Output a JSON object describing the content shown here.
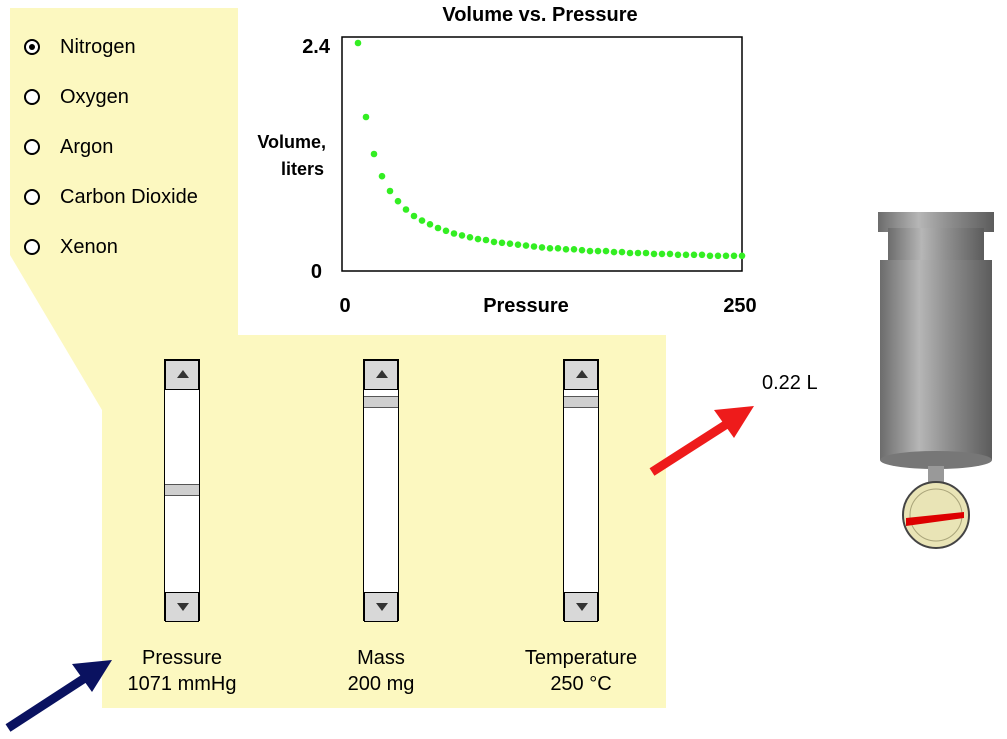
{
  "gas_options": [
    {
      "label": "Nitrogen",
      "selected": true
    },
    {
      "label": "Oxygen",
      "selected": false
    },
    {
      "label": "Argon",
      "selected": false
    },
    {
      "label": "Carbon Dioxide",
      "selected": false
    },
    {
      "label": "Xenon",
      "selected": false
    }
  ],
  "chart_data": {
    "type": "scatter",
    "title": "Volume vs. Pressure",
    "xlabel": "Pressure",
    "ylabel": [
      "Volume,",
      "liters"
    ],
    "xlim": [
      0,
      250
    ],
    "ylim": [
      0,
      2.4
    ],
    "xtick_labels": [
      "0",
      "250"
    ],
    "ytick_labels": [
      "2.4",
      "0"
    ],
    "grid": false,
    "color": "#33ee22",
    "x": [
      10,
      15,
      20,
      25,
      30,
      35,
      40,
      45,
      50,
      55,
      60,
      65,
      70,
      75,
      80,
      85,
      90,
      95,
      100,
      105,
      110,
      115,
      120,
      125,
      130,
      135,
      140,
      145,
      150,
      155,
      160,
      165,
      170,
      175,
      180,
      185,
      190,
      195,
      200,
      205,
      210,
      215,
      220,
      225,
      230,
      235,
      240,
      245,
      250
    ],
    "y": [
      2.4,
      1.6,
      1.2,
      0.96,
      0.8,
      0.69,
      0.6,
      0.53,
      0.48,
      0.44,
      0.4,
      0.37,
      0.34,
      0.32,
      0.3,
      0.28,
      0.27,
      0.25,
      0.24,
      0.23,
      0.22,
      0.21,
      0.2,
      0.19,
      0.18,
      0.18,
      0.17,
      0.17,
      0.16,
      0.15,
      0.15,
      0.15,
      0.14,
      0.14,
      0.13,
      0.13,
      0.13,
      0.12,
      0.12,
      0.12,
      0.11,
      0.11,
      0.11,
      0.11,
      0.1,
      0.1,
      0.1,
      0.1,
      0.1
    ]
  },
  "sliders": {
    "pressure": {
      "label": "Pressure",
      "value": "1071 mmHg",
      "position": 0.5
    },
    "mass": {
      "label": "Mass",
      "value": "200 mg",
      "position": 0.03
    },
    "temperature": {
      "label": "Temperature",
      "value": "250 °C",
      "position": 0.03
    }
  },
  "volume_readout": "0.22 L",
  "colors": {
    "panel": "#fcf8c0",
    "arrow_in": "#0a1260",
    "arrow_out": "#ee1b1b",
    "cylinder": "#8d8d8d",
    "gauge_face": "#e9e4b6",
    "gauge_needle": "#dd0000"
  }
}
